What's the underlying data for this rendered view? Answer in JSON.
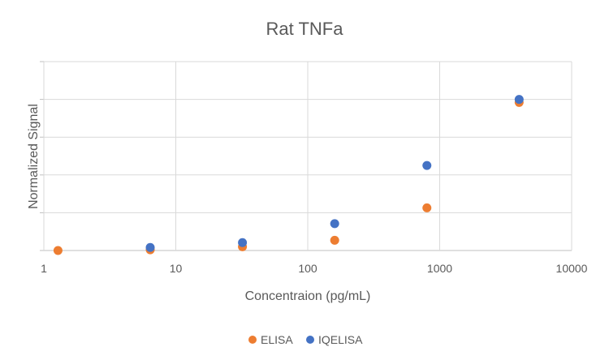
{
  "chart_data": {
    "type": "scatter",
    "title": "Rat TNFa",
    "xlabel": "Concentraion (pg/mL)",
    "ylabel": "Normalized Signal",
    "x_scale": "log",
    "xlim": [
      1,
      10000
    ],
    "ylim": [
      0,
      5
    ],
    "x_ticks": [
      1,
      10,
      100,
      1000,
      10000
    ],
    "x_tick_labels": [
      "1",
      "10",
      "100",
      "1000",
      "10000"
    ],
    "y_ticks": [
      0,
      1,
      2,
      3,
      4,
      5
    ],
    "y_tick_labels_visible": false,
    "grid": true,
    "legend_position": "bottom",
    "series": [
      {
        "name": "ELISA",
        "color": "#ED7D31",
        "x": [
          1.28,
          6.4,
          32,
          160,
          800,
          4000
        ],
        "y": [
          0.0,
          0.02,
          0.1,
          0.27,
          1.13,
          3.92
        ]
      },
      {
        "name": "IQELISA",
        "color": "#4472C4",
        "x": [
          6.4,
          32,
          160,
          800,
          4000
        ],
        "y": [
          0.08,
          0.21,
          0.71,
          2.25,
          4.0
        ]
      }
    ]
  }
}
